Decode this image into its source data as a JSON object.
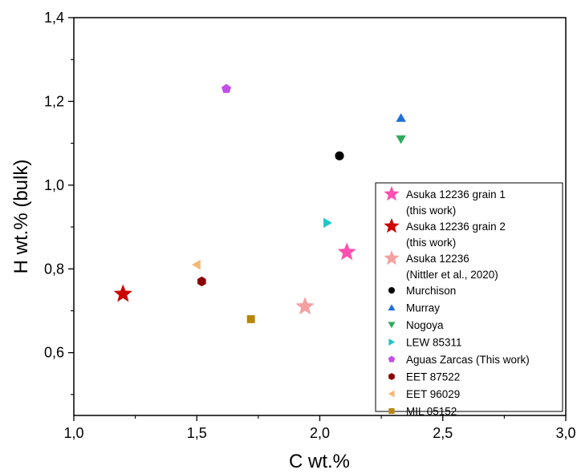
{
  "chart_data": {
    "type": "scatter",
    "xlabel": "C wt.%",
    "ylabel": "H wt.% (bulk)",
    "xlim": [
      1.0,
      3.0
    ],
    "ylim": [
      0.45,
      1.4
    ],
    "x_ticks": [
      1.0,
      1.5,
      2.0,
      2.5,
      3.0
    ],
    "x_tick_labels": [
      "1,0",
      "1,5",
      "2,0",
      "2,5",
      "3,0"
    ],
    "y_ticks": [
      0.6,
      0.8,
      1.0,
      1.2,
      1.4
    ],
    "y_tick_labels": [
      "0,6",
      "0,8",
      "1,0",
      "1,2",
      "1,4"
    ],
    "grid": false,
    "legend_position": "bottom-right",
    "series": [
      {
        "name": "Asuka 12236 grain 1",
        "name_line2": "(this work)",
        "marker": "star",
        "color": "#ff4fb0",
        "x": 2.11,
        "y": 0.84
      },
      {
        "name": "Asuka 12236 grain 2",
        "name_line2": "(this work)",
        "marker": "star",
        "color": "#cc0000",
        "x": 1.2,
        "y": 0.74
      },
      {
        "name": "Asuka 12236",
        "name_line2": "(Nittler et al., 2020)",
        "marker": "star",
        "color": "#f4a0a0",
        "x": 1.94,
        "y": 0.71
      },
      {
        "name": "Murchison",
        "marker": "circle",
        "color": "#000000",
        "x": 2.08,
        "y": 1.07
      },
      {
        "name": "Murray",
        "marker": "triangle-up",
        "color": "#1f6fd6",
        "x": 2.33,
        "y": 1.16
      },
      {
        "name": "Nogoya",
        "marker": "triangle-down",
        "color": "#2faa5f",
        "x": 2.33,
        "y": 1.11
      },
      {
        "name": "LEW 85311",
        "marker": "triangle-right",
        "color": "#1fc6c6",
        "x": 2.03,
        "y": 0.91
      },
      {
        "name": "Aguas Zarcas (This work)",
        "marker": "pentagon",
        "color": "#c24fe8",
        "x": 1.62,
        "y": 1.23
      },
      {
        "name": "EET 87522",
        "marker": "hexagon",
        "color": "#8b0000",
        "x": 1.52,
        "y": 0.77
      },
      {
        "name": "EET 96029",
        "marker": "triangle-left",
        "color": "#f5b874",
        "x": 1.5,
        "y": 0.81
      },
      {
        "name": "MIL 05152",
        "marker": "square",
        "color": "#b8860b",
        "x": 1.72,
        "y": 0.68
      }
    ]
  }
}
